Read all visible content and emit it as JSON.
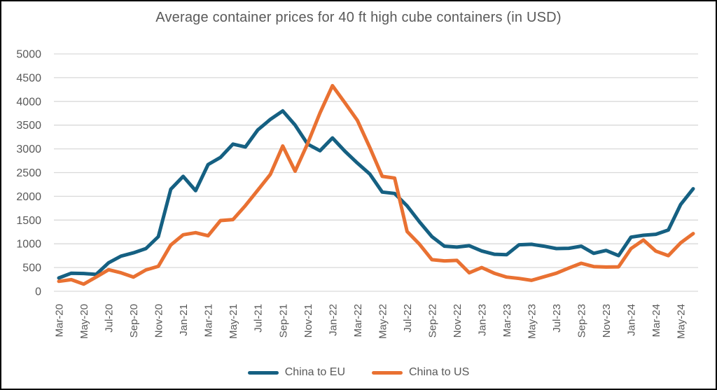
{
  "title": "Average container prices for 40 ft high cube containers (in USD)",
  "colors": {
    "series_china_to_eu": "#156082",
    "series_china_to_us": "#E97132",
    "text": "#595959",
    "gridline": "#D9D9D9",
    "border": "#000000",
    "background": "#FFFFFF"
  },
  "legend": {
    "items": [
      {
        "label": "China to EU",
        "color": "#156082"
      },
      {
        "label": "China to US",
        "color": "#E97132"
      }
    ]
  },
  "chart_data": {
    "type": "line",
    "title": "Average container prices for 40 ft high cube containers (in USD)",
    "xlabel": "",
    "ylabel": "",
    "ylim": [
      0,
      5000
    ],
    "y_ticks": [
      0,
      500,
      1000,
      1500,
      2000,
      2500,
      3000,
      3500,
      4000,
      4500,
      5000
    ],
    "grid": "horizontal",
    "legend_position": "bottom",
    "x_tick_label_rotation": -90,
    "x_tick_label_interval": 2,
    "categories": [
      "Mar-20",
      "Apr-20",
      "May-20",
      "Jun-20",
      "Jul-20",
      "Aug-20",
      "Sep-20",
      "Oct-20",
      "Nov-20",
      "Dec-20",
      "Jan-21",
      "Feb-21",
      "Mar-21",
      "Apr-21",
      "May-21",
      "Jun-21",
      "Jul-21",
      "Aug-21",
      "Sep-21",
      "Oct-21",
      "Nov-21",
      "Dec-21",
      "Jan-22",
      "Feb-22",
      "Mar-22",
      "Apr-22",
      "May-22",
      "Jun-22",
      "Jul-22",
      "Aug-22",
      "Sep-22",
      "Oct-22",
      "Nov-22",
      "Dec-22",
      "Jan-23",
      "Feb-23",
      "Mar-23",
      "Apr-23",
      "May-23",
      "Jun-23",
      "Jul-23",
      "Aug-23",
      "Sep-23",
      "Oct-23",
      "Nov-23",
      "Dec-23",
      "Jan-24",
      "Feb-24",
      "Mar-24",
      "Apr-24",
      "May-24",
      "Jun-24"
    ],
    "series": [
      {
        "name": "China to EU",
        "color": "#156082",
        "values": [
          280,
          380,
          375,
          355,
          600,
          740,
          810,
          900,
          1150,
          2150,
          2420,
          2120,
          2670,
          2820,
          3100,
          3040,
          3400,
          3620,
          3800,
          3500,
          3100,
          2960,
          3230,
          2950,
          2700,
          2470,
          2090,
          2060,
          1800,
          1460,
          1150,
          950,
          930,
          960,
          850,
          780,
          770,
          980,
          990,
          950,
          900,
          905,
          950,
          800,
          860,
          750,
          1140,
          1180,
          1200,
          1290,
          1830,
          2160
        ]
      },
      {
        "name": "China to US",
        "color": "#E97132",
        "values": [
          210,
          245,
          150,
          300,
          455,
          390,
          300,
          450,
          525,
          975,
          1190,
          1235,
          1170,
          1490,
          1510,
          1805,
          2130,
          2460,
          3060,
          2530,
          3110,
          3760,
          4330,
          3970,
          3600,
          3030,
          2420,
          2385,
          1260,
          990,
          665,
          640,
          650,
          390,
          500,
          380,
          300,
          270,
          230,
          305,
          380,
          490,
          590,
          520,
          510,
          515,
          900,
          1080,
          845,
          750,
          1020,
          1215
        ]
      }
    ]
  }
}
